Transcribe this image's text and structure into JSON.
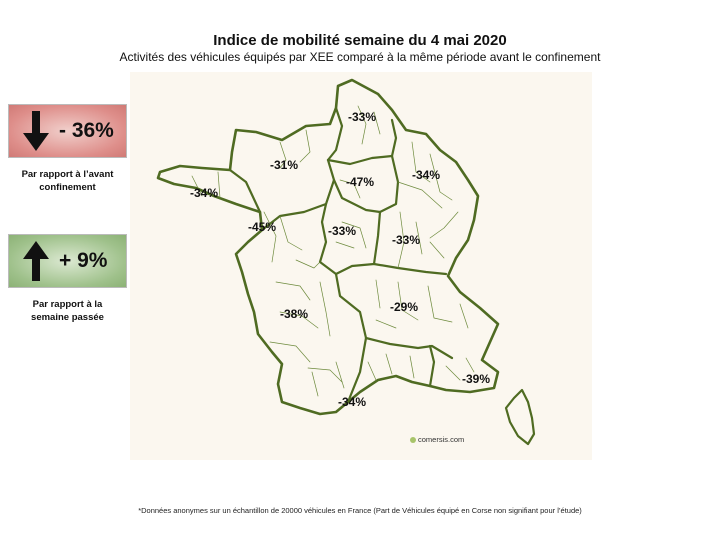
{
  "title": "Indice de mobilité semaine du 4 mai 2020",
  "subtitle": "Activités des véhicules équipés par XEE comparé à la même période avant le confinement",
  "stats": {
    "vs_lockdown": {
      "value": "- 36%",
      "caption_line1": "Par rapport à l’avant",
      "caption_line2": "confinement",
      "color": "#d9827d",
      "icon": "arrow-down-icon"
    },
    "vs_last_week": {
      "value": "+ 9%",
      "caption_line1": "Par rapport à la",
      "caption_line2": "semaine passée",
      "color": "#95ba80",
      "icon": "arrow-up-icon"
    }
  },
  "map": {
    "border_color": "#4f6b22",
    "regions": [
      {
        "name": "Hauts-de-France",
        "value": "-33%"
      },
      {
        "name": "Normandie",
        "value": "-31%"
      },
      {
        "name": "Île-de-France",
        "value": "-47%"
      },
      {
        "name": "Grand Est",
        "value": "-34%"
      },
      {
        "name": "Bretagne",
        "value": "-34%"
      },
      {
        "name": "Pays de la Loire",
        "value": "-45%"
      },
      {
        "name": "Centre-Val de Loire",
        "value": "-33%"
      },
      {
        "name": "Bourgogne-Franche-Comté",
        "value": "-33%"
      },
      {
        "name": "Nouvelle-Aquitaine",
        "value": "-38%"
      },
      {
        "name": "Auvergne-Rhône-Alpes",
        "value": "-29%"
      },
      {
        "name": "Occitanie",
        "value": "-34%"
      },
      {
        "name": "Provence-Alpes-Côte d'Azur",
        "value": "-39%"
      }
    ],
    "credit": "comersis.com"
  },
  "footnote": "*Données anonymes sur un échantillon de 20000 véhicules en France (Part de Véhicules équipé en Corse non signifiant pour l’étude)"
}
